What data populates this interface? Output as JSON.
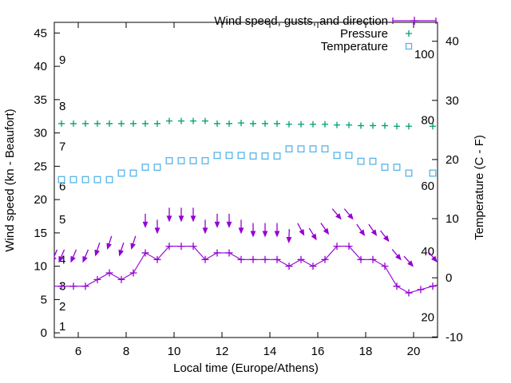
{
  "chart_data": {
    "type": "line",
    "title": "",
    "background": "#ffffff",
    "grid": false,
    "legend_position": "top-right-inside",
    "legend": [
      {
        "label": "Wind speed, gusts, and direction",
        "color": "#9400d3",
        "sample": "errorbar"
      },
      {
        "label": "Pressure",
        "color": "#009e73",
        "sample": "plus"
      },
      {
        "label": "Temperature",
        "color": "#56b4e9",
        "sample": "square"
      }
    ],
    "x_axis": {
      "label": "Local time (Europe/Athens)",
      "min": 5,
      "max": 21,
      "ticks": [
        6,
        8,
        10,
        12,
        14,
        16,
        18,
        20
      ]
    },
    "y_axis_left": {
      "label": "Wind speed (kn - Beaufort)",
      "min": -0.7,
      "max": 46.6,
      "ticks": [
        0,
        5,
        10,
        15,
        20,
        25,
        30,
        35,
        40,
        45
      ],
      "beaufort_marks": [
        {
          "bft": "1",
          "kn": 1
        },
        {
          "bft": "2",
          "kn": 4
        },
        {
          "bft": "3",
          "kn": 7
        },
        {
          "bft": "4",
          "kn": 11
        },
        {
          "bft": "5",
          "kn": 17
        },
        {
          "bft": "6",
          "kn": 22
        },
        {
          "bft": "7",
          "kn": 28
        },
        {
          "bft": "8",
          "kn": 34
        },
        {
          "bft": "9",
          "kn": 41
        }
      ]
    },
    "y_axis_right": {
      "label": "Temperature (C - F)",
      "min": -10.1,
      "max": 43.2,
      "ticks": [
        -10,
        0,
        10,
        20,
        30,
        40
      ],
      "fahrenheit_marks": [
        "20",
        "40",
        "60",
        "80",
        "100"
      ]
    },
    "x": [
      5.3,
      5.8,
      6.3,
      6.8,
      7.3,
      7.8,
      8.3,
      8.8,
      9.3,
      9.8,
      10.3,
      10.8,
      11.3,
      11.8,
      12.3,
      12.8,
      13.3,
      13.8,
      14.3,
      14.8,
      15.3,
      15.8,
      16.3,
      16.8,
      17.3,
      17.8,
      18.3,
      18.8,
      19.3,
      19.8,
      20.3,
      20.8
    ],
    "series": [
      {
        "id": "wind_speed",
        "name": "Wind speed (kn)",
        "axis": "left",
        "color": "#9400d3",
        "marker": "plus",
        "line": true,
        "values": [
          7,
          7,
          7,
          8,
          9,
          8,
          9,
          12,
          11,
          13,
          13,
          13,
          11,
          12,
          12,
          11,
          11,
          11,
          11,
          10,
          11,
          10,
          11,
          13,
          13,
          11,
          11,
          10,
          7,
          6,
          6.5,
          7
        ],
        "edge_extension": {
          "left": {
            "x": 5.0,
            "y": 7
          },
          "right": {
            "x": 21.0,
            "y": 7.2
          }
        }
      },
      {
        "id": "wind_gusts_direction",
        "name": "Wind gusts (kn) with direction arrows (deg, 180 = pointing down/south)",
        "axis": "left",
        "color": "#9400d3",
        "marker": "arrow",
        "line": false,
        "values": [
          11.5,
          11.5,
          11.5,
          12.5,
          13.5,
          12.5,
          13.5,
          16.8,
          15.9,
          17.7,
          17.7,
          17.7,
          15.9,
          16.8,
          16.8,
          15.9,
          15.4,
          15.4,
          15.4,
          14.5,
          15.5,
          14.8,
          15.6,
          17.8,
          17.8,
          15.4,
          15.4,
          14.5,
          11.7,
          10.7,
          null,
          11.4
        ],
        "direction_deg": [
          203,
          203,
          203,
          198,
          198,
          198,
          198,
          180,
          180,
          180,
          180,
          180,
          180,
          180,
          180,
          180,
          180,
          180,
          180,
          182,
          152,
          148,
          145,
          140,
          140,
          145,
          145,
          142,
          140,
          138,
          null,
          140
        ],
        "edge_extension": {
          "left": {
            "x": 5.0,
            "y": 11.5,
            "dir": 203
          }
        }
      },
      {
        "id": "pressure",
        "name": "Pressure (no numeric scale shown; plotted height in left-axis units)",
        "axis": "left",
        "color": "#009e73",
        "marker": "plus-small",
        "line": false,
        "values": [
          31.4,
          31.4,
          31.4,
          31.4,
          31.4,
          31.4,
          31.4,
          31.4,
          31.4,
          31.8,
          31.8,
          31.8,
          31.8,
          31.4,
          31.4,
          31.5,
          31.4,
          31.4,
          31.4,
          31.3,
          31.3,
          31.3,
          31.3,
          31.2,
          31.2,
          31.1,
          31.1,
          31.1,
          31.0,
          31.0,
          null,
          31.0
        ]
      },
      {
        "id": "temperature",
        "name": "Temperature (C)",
        "axis": "right",
        "color": "#56b4e9",
        "marker": "square",
        "line": false,
        "values": [
          16.6,
          16.6,
          16.6,
          16.6,
          16.6,
          17.7,
          17.7,
          18.7,
          18.7,
          19.8,
          19.8,
          19.8,
          19.8,
          20.7,
          20.7,
          20.7,
          20.6,
          20.6,
          20.6,
          21.8,
          21.8,
          21.8,
          21.8,
          20.7,
          20.7,
          19.7,
          19.7,
          18.7,
          18.7,
          17.7,
          null,
          17.7
        ]
      }
    ]
  }
}
